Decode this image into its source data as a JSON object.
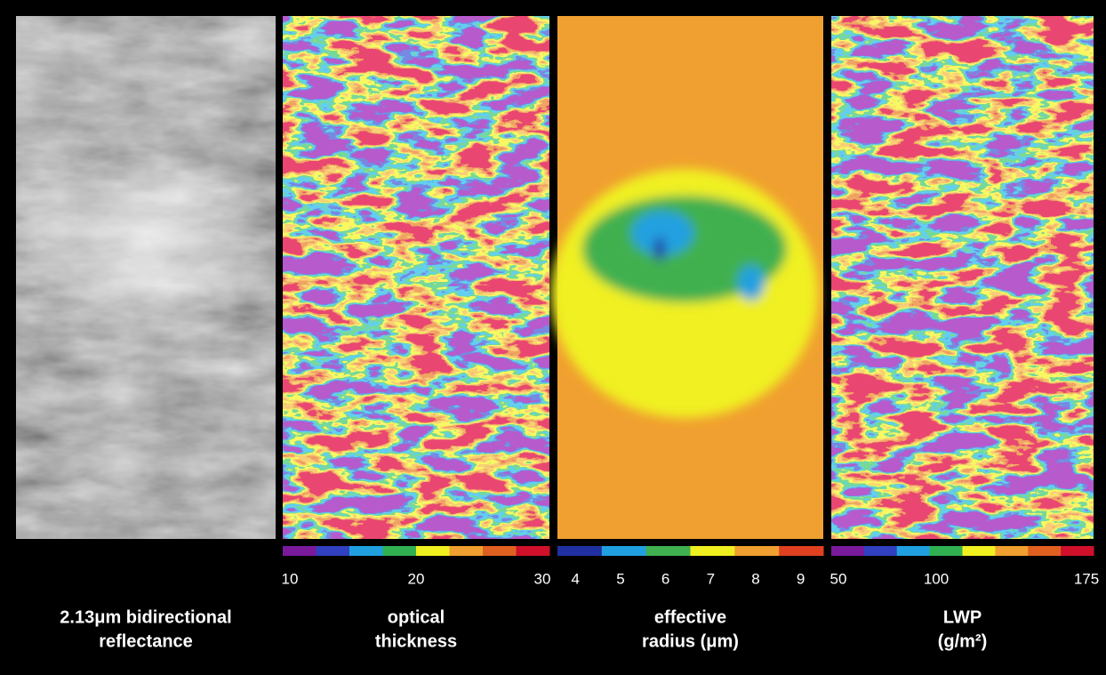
{
  "panels": [
    {
      "caption_lines": [
        "2.13μm bidirectional",
        "reflectance"
      ]
    },
    {
      "caption_lines": [
        "optical",
        "thickness"
      ],
      "colorbar": {
        "range": [
          10,
          30
        ],
        "ticks": [
          10,
          20,
          30
        ],
        "colors": [
          "#7a1a9a",
          "#3040c0",
          "#20a0e0",
          "#30b050",
          "#f0f020",
          "#f0a030",
          "#e06020",
          "#d0102a"
        ]
      }
    },
    {
      "caption_lines": [
        "effective",
        "radius (μm)"
      ],
      "colorbar": {
        "range": [
          3.6,
          9.5
        ],
        "ticks": [
          4,
          5,
          6,
          7,
          8,
          9
        ],
        "colors": [
          "#2030a0",
          "#20a0e0",
          "#40b050",
          "#f0f020",
          "#f0a030",
          "#e04020"
        ]
      }
    },
    {
      "caption_lines": [
        "LWP",
        "(g/m²)"
      ],
      "colorbar": {
        "range": [
          50,
          175
        ],
        "ticks": [
          50,
          100,
          175
        ],
        "colors": [
          "#7a1a9a",
          "#3040c0",
          "#20a0e0",
          "#30b050",
          "#f0f020",
          "#f0a030",
          "#e06020",
          "#d0102a"
        ]
      }
    }
  ]
}
